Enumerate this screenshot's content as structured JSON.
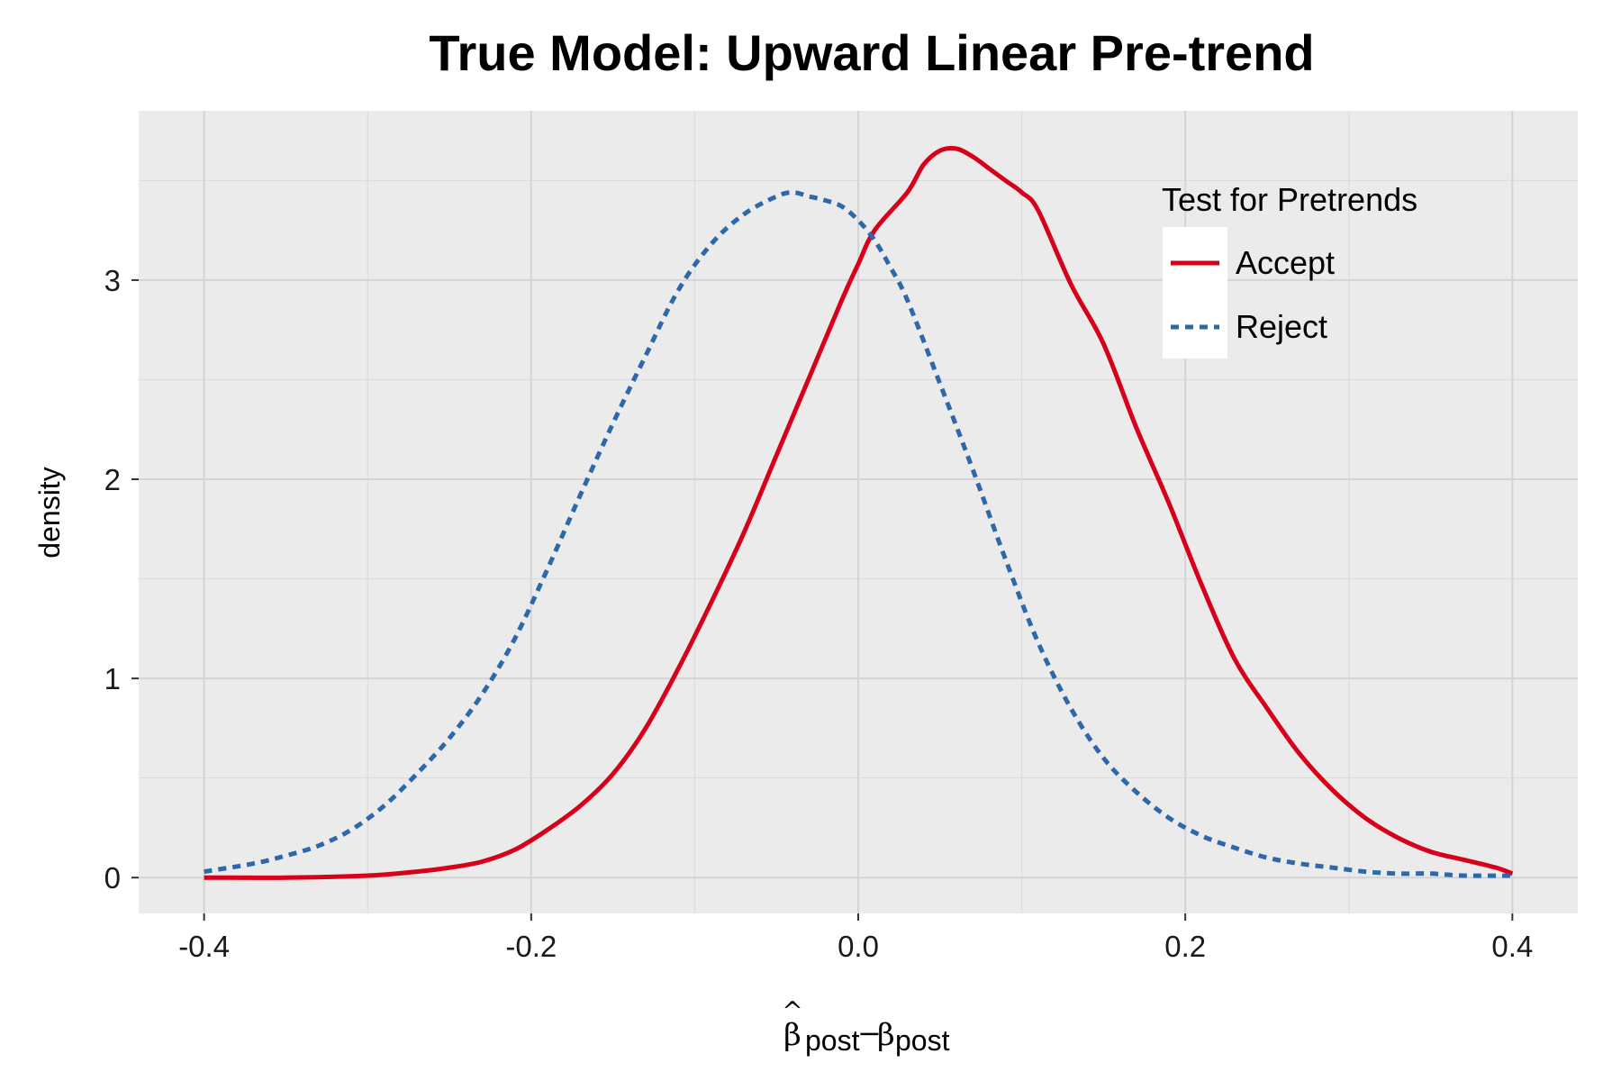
{
  "chart_data": {
    "type": "line",
    "title": "True Model: Upward Linear Pre-trend",
    "xlabel": {
      "base": "β",
      "hat": "^",
      "sub1": "post",
      "minus": "−",
      "sub2": "post"
    },
    "ylabel": "density",
    "xlim": [
      -0.44,
      0.44
    ],
    "ylim": [
      -0.18,
      3.85
    ],
    "x_ticks": [
      -0.4,
      -0.2,
      0.0,
      0.2,
      0.4
    ],
    "x_tick_labels": [
      "-0.4",
      "-0.2",
      "0.0",
      "0.2",
      "0.4"
    ],
    "y_ticks": [
      0,
      1,
      2,
      3
    ],
    "y_tick_labels": [
      "0",
      "1",
      "2",
      "3"
    ],
    "x_minor": [
      -0.3,
      -0.1,
      0.1,
      0.3
    ],
    "y_minor": [
      0.5,
      1.5,
      2.5,
      3.5
    ],
    "panel_background": "#ebebeb",
    "grid": true,
    "legend": {
      "title": "Test for Pretrends",
      "position": "top-right"
    },
    "series": [
      {
        "name": "Accept",
        "color": "#d7001a",
        "dash": "solid",
        "x": [
          -0.4,
          -0.35,
          -0.3,
          -0.27,
          -0.25,
          -0.23,
          -0.21,
          -0.19,
          -0.17,
          -0.15,
          -0.13,
          -0.11,
          -0.09,
          -0.07,
          -0.05,
          -0.03,
          -0.01,
          0.0,
          0.01,
          0.03,
          0.04,
          0.05,
          0.06,
          0.07,
          0.08,
          0.09,
          0.1,
          0.11,
          0.13,
          0.15,
          0.17,
          0.19,
          0.21,
          0.23,
          0.25,
          0.27,
          0.29,
          0.31,
          0.33,
          0.35,
          0.37,
          0.39,
          0.4
        ],
        "y": [
          0.0,
          0.0,
          0.01,
          0.03,
          0.05,
          0.08,
          0.14,
          0.24,
          0.36,
          0.52,
          0.75,
          1.05,
          1.38,
          1.73,
          2.12,
          2.51,
          2.9,
          3.08,
          3.25,
          3.44,
          3.58,
          3.65,
          3.66,
          3.62,
          3.56,
          3.5,
          3.44,
          3.35,
          2.98,
          2.68,
          2.26,
          1.88,
          1.47,
          1.1,
          0.85,
          0.62,
          0.44,
          0.3,
          0.2,
          0.13,
          0.09,
          0.05,
          0.02
        ]
      },
      {
        "name": "Reject",
        "color": "#2d68a8",
        "dash": "dashed",
        "x": [
          -0.4,
          -0.37,
          -0.35,
          -0.33,
          -0.31,
          -0.29,
          -0.27,
          -0.25,
          -0.23,
          -0.21,
          -0.19,
          -0.17,
          -0.15,
          -0.13,
          -0.11,
          -0.09,
          -0.07,
          -0.05,
          -0.04,
          -0.03,
          -0.02,
          -0.01,
          0.0,
          0.01,
          0.02,
          0.03,
          0.05,
          0.07,
          0.09,
          0.11,
          0.13,
          0.15,
          0.17,
          0.19,
          0.21,
          0.23,
          0.25,
          0.27,
          0.29,
          0.31,
          0.33,
          0.35,
          0.37,
          0.4
        ],
        "y": [
          0.03,
          0.07,
          0.11,
          0.16,
          0.24,
          0.36,
          0.52,
          0.7,
          0.92,
          1.2,
          1.55,
          1.92,
          2.28,
          2.62,
          2.95,
          3.18,
          3.33,
          3.42,
          3.44,
          3.42,
          3.4,
          3.37,
          3.3,
          3.2,
          3.06,
          2.9,
          2.48,
          2.05,
          1.6,
          1.18,
          0.85,
          0.6,
          0.43,
          0.3,
          0.21,
          0.15,
          0.1,
          0.07,
          0.05,
          0.03,
          0.02,
          0.02,
          0.01,
          0.01
        ]
      }
    ]
  }
}
